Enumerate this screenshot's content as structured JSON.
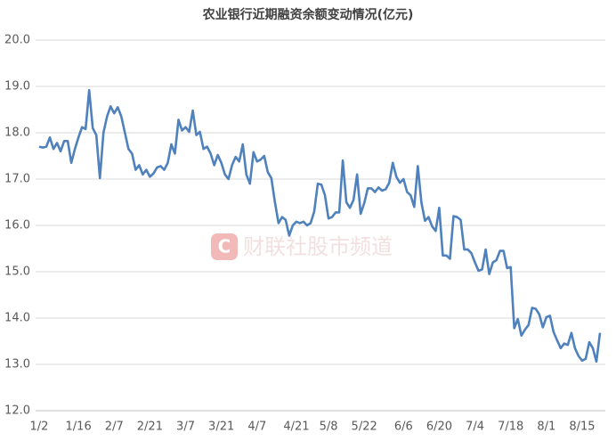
{
  "chart_data": {
    "type": "line",
    "title": "农业银行近期融资余额变动情况(亿元)",
    "watermark": "财联社股市频道",
    "categories": [
      "1/2",
      null,
      null,
      null,
      null,
      null,
      null,
      null,
      null,
      null,
      null,
      "1/16",
      null,
      null,
      null,
      null,
      null,
      null,
      null,
      null,
      null,
      "2/7",
      null,
      null,
      null,
      null,
      null,
      null,
      null,
      null,
      null,
      "2/21",
      null,
      null,
      null,
      null,
      null,
      null,
      null,
      null,
      null,
      "3/7",
      null,
      null,
      null,
      null,
      null,
      null,
      null,
      null,
      null,
      "3/21",
      null,
      null,
      null,
      null,
      null,
      null,
      null,
      null,
      null,
      "4/7",
      null,
      null,
      null,
      null,
      null,
      null,
      null,
      null,
      null,
      null,
      "4/21",
      null,
      null,
      null,
      null,
      null,
      null,
      null,
      null,
      "5/8",
      null,
      null,
      null,
      null,
      null,
      null,
      null,
      null,
      null,
      "5/22",
      null,
      null,
      null,
      null,
      null,
      null,
      null,
      null,
      null,
      null,
      "6/6",
      null,
      null,
      null,
      null,
      null,
      null,
      null,
      null,
      null,
      "6/20",
      null,
      null,
      null,
      null,
      null,
      null,
      null,
      null,
      null,
      "7/4",
      null,
      null,
      null,
      null,
      null,
      null,
      null,
      null,
      null,
      "7/18",
      null,
      null,
      null,
      null,
      null,
      null,
      null,
      null,
      null,
      "8/1",
      null,
      null,
      null,
      null,
      null,
      null,
      null,
      null,
      null,
      "8/15",
      null,
      null,
      null,
      null,
      null
    ],
    "values": [
      17.7,
      17.68,
      17.7,
      17.9,
      17.65,
      17.78,
      17.6,
      17.82,
      17.82,
      17.35,
      17.65,
      17.9,
      18.12,
      18.08,
      18.92,
      18.1,
      17.95,
      17.02,
      18.0,
      18.35,
      18.57,
      18.42,
      18.55,
      18.35,
      18.0,
      17.65,
      17.55,
      17.2,
      17.3,
      17.1,
      17.2,
      17.05,
      17.12,
      17.25,
      17.28,
      17.2,
      17.35,
      17.75,
      17.55,
      18.28,
      18.05,
      18.12,
      18.02,
      18.48,
      17.95,
      18.02,
      17.65,
      17.7,
      17.55,
      17.3,
      17.52,
      17.35,
      17.1,
      17.0,
      17.3,
      17.48,
      17.38,
      17.75,
      17.1,
      16.9,
      17.58,
      17.38,
      17.42,
      17.5,
      17.15,
      17.02,
      16.5,
      16.05,
      16.18,
      16.12,
      15.78,
      16.0,
      16.08,
      16.05,
      16.08,
      16.0,
      16.05,
      16.3,
      16.9,
      16.88,
      16.65,
      16.15,
      16.18,
      16.28,
      16.28,
      17.4,
      16.5,
      16.38,
      16.55,
      17.1,
      16.25,
      16.48,
      16.8,
      16.8,
      16.72,
      16.82,
      16.75,
      16.78,
      16.92,
      17.35,
      17.05,
      16.92,
      17.0,
      16.72,
      16.65,
      16.4,
      17.28,
      16.5,
      16.1,
      16.18,
      15.98,
      15.88,
      16.38,
      15.35,
      15.35,
      15.28,
      16.2,
      16.18,
      16.12,
      15.48,
      15.48,
      15.4,
      15.2,
      15.02,
      15.05,
      15.48,
      14.95,
      15.2,
      15.25,
      15.45,
      15.45,
      15.08,
      15.1,
      13.78,
      13.98,
      13.62,
      13.75,
      13.85,
      14.22,
      14.2,
      14.08,
      13.8,
      14.02,
      14.05,
      13.7,
      13.52,
      13.35,
      13.45,
      13.42,
      13.68,
      13.35,
      13.18,
      13.08,
      13.12,
      13.48,
      13.35,
      13.06,
      13.68
    ],
    "color": "#4f81bd",
    "ylim": [
      12,
      20
    ],
    "yticks": [
      {
        "value": 12,
        "label": "12.0"
      },
      {
        "value": 13,
        "label": "13.0"
      },
      {
        "value": 14,
        "label": "14.0"
      },
      {
        "value": 15,
        "label": "15.0"
      },
      {
        "value": 16,
        "label": "16.0"
      },
      {
        "value": 17,
        "label": "17.0"
      },
      {
        "value": 18,
        "label": "18.0"
      },
      {
        "value": 19,
        "label": "19.0"
      },
      {
        "value": 20,
        "label": "20.0"
      }
    ],
    "grid": true
  }
}
